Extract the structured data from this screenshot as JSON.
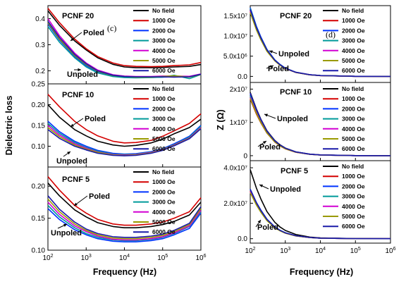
{
  "figure": {
    "left_ylabel": "Dielectric loss",
    "right_ylabel": "Z (Ω)",
    "left_xlabel": "Frequency (Hz)",
    "right_xlabel": "Frequency (Hz)"
  },
  "legend_entries": [
    {
      "label": "No field",
      "color": "#000000"
    },
    {
      "label": "1000 Oe",
      "color": "#d40000"
    },
    {
      "label": "2000 Oe",
      "color": "#0033ff"
    },
    {
      "label": "3000 Oe",
      "color": "#009a9a"
    },
    {
      "label": "4000 Oe",
      "color": "#d200d2"
    },
    {
      "label": "5000 Oe",
      "color": "#9a9a00"
    },
    {
      "label": "6000 Oe",
      "color": "#1a1aa8"
    }
  ],
  "chart_data": [
    {
      "id": "loss-pcnf20",
      "type": "line",
      "title": "PCNF 20",
      "letter": "(c)",
      "x_scale": "log",
      "xlim": [
        100,
        1000000
      ],
      "ylim": [
        0.15,
        0.45
      ],
      "yticks": [
        0.2,
        0.3,
        0.4
      ],
      "ytick_labels": [
        "0.2",
        "0.3",
        "0.4"
      ],
      "annotations": [
        "Poled",
        "Unpoled"
      ],
      "x": [
        100,
        200,
        500,
        1000,
        2000,
        5000,
        10000,
        20000,
        50000,
        100000,
        200000,
        500000,
        1000000
      ],
      "series": [
        {
          "name": "No field",
          "values": [
            0.43,
            0.375,
            0.315,
            0.28,
            0.25,
            0.225,
            0.215,
            0.212,
            0.212,
            0.213,
            0.215,
            0.217,
            0.224
          ]
        },
        {
          "name": "1000 Oe",
          "values": [
            0.44,
            0.385,
            0.322,
            0.285,
            0.255,
            0.23,
            0.22,
            0.217,
            0.216,
            0.217,
            0.22,
            0.223,
            0.232
          ]
        },
        {
          "name": "2000 Oe",
          "values": [
            0.38,
            0.318,
            0.255,
            0.22,
            0.195,
            0.18,
            0.176,
            0.175,
            0.175,
            0.176,
            0.177,
            0.177,
            0.185
          ]
        },
        {
          "name": "3000 Oe",
          "values": [
            0.37,
            0.31,
            0.25,
            0.215,
            0.192,
            0.178,
            0.174,
            0.173,
            0.174,
            0.176,
            0.183,
            0.17,
            0.186
          ]
        },
        {
          "name": "4000 Oe",
          "values": [
            0.4,
            0.335,
            0.268,
            0.23,
            0.203,
            0.185,
            0.18,
            0.178,
            0.178,
            0.18,
            0.18,
            0.179,
            0.188
          ]
        },
        {
          "name": "5000 Oe",
          "values": [
            0.385,
            0.322,
            0.259,
            0.224,
            0.198,
            0.182,
            0.178,
            0.176,
            0.176,
            0.178,
            0.181,
            0.176,
            0.186
          ]
        },
        {
          "name": "6000 Oe",
          "values": [
            0.39,
            0.328,
            0.263,
            0.227,
            0.2,
            0.183,
            0.178,
            0.177,
            0.177,
            0.177,
            0.176,
            0.177,
            0.187
          ]
        }
      ]
    },
    {
      "id": "loss-pcnf10",
      "type": "line",
      "title": "PCNF 10",
      "x_scale": "log",
      "xlim": [
        100,
        1000000
      ],
      "ylim": [
        0.05,
        0.25
      ],
      "yticks": [
        0.1,
        0.15,
        0.2,
        0.25
      ],
      "ytick_labels": [
        "0.10",
        "0.15",
        "0.20",
        "0.25"
      ],
      "annotations": [
        "Poled",
        "Unpoled"
      ],
      "x": [
        100,
        200,
        500,
        1000,
        2000,
        5000,
        10000,
        20000,
        50000,
        100000,
        200000,
        500000,
        1000000
      ],
      "series": [
        {
          "name": "No field",
          "values": [
            0.2,
            0.17,
            0.14,
            0.125,
            0.112,
            0.103,
            0.1,
            0.102,
            0.108,
            0.117,
            0.13,
            0.145,
            0.165
          ]
        },
        {
          "name": "1000 Oe",
          "values": [
            0.225,
            0.195,
            0.16,
            0.14,
            0.125,
            0.112,
            0.108,
            0.109,
            0.114,
            0.124,
            0.137,
            0.155,
            0.178
          ]
        },
        {
          "name": "2000 Oe",
          "values": [
            0.16,
            0.135,
            0.112,
            0.1,
            0.09,
            0.083,
            0.081,
            0.082,
            0.087,
            0.094,
            0.106,
            0.124,
            0.15
          ]
        },
        {
          "name": "3000 Oe",
          "values": [
            0.155,
            0.131,
            0.109,
            0.097,
            0.088,
            0.081,
            0.08,
            0.081,
            0.086,
            0.093,
            0.104,
            0.122,
            0.148
          ]
        },
        {
          "name": "4000 Oe",
          "values": [
            0.15,
            0.127,
            0.106,
            0.095,
            0.086,
            0.08,
            0.079,
            0.08,
            0.085,
            0.092,
            0.103,
            0.12,
            0.145
          ]
        },
        {
          "name": "5000 Oe",
          "values": [
            0.145,
            0.123,
            0.103,
            0.093,
            0.085,
            0.079,
            0.078,
            0.079,
            0.084,
            0.091,
            0.102,
            0.119,
            0.143
          ]
        },
        {
          "name": "6000 Oe",
          "values": [
            0.14,
            0.119,
            0.1,
            0.091,
            0.083,
            0.078,
            0.077,
            0.078,
            0.083,
            0.09,
            0.101,
            0.118,
            0.142
          ]
        }
      ]
    },
    {
      "id": "loss-pcnf5",
      "type": "line",
      "title": "PCNF 5",
      "x_scale": "log",
      "xlim": [
        100,
        1000000
      ],
      "ylim": [
        0.1,
        0.23
      ],
      "yticks": [
        0.1,
        0.15,
        0.2
      ],
      "ytick_labels": [
        "0.10",
        "0.15",
        "0.20"
      ],
      "xticks": [
        100,
        1000,
        10000,
        100000,
        1000000
      ],
      "annotations": [
        "Poled",
        "Unpoled"
      ],
      "x": [
        100,
        200,
        500,
        1000,
        2000,
        5000,
        10000,
        20000,
        50000,
        100000,
        200000,
        500000,
        1000000
      ],
      "series": [
        {
          "name": "No field",
          "values": [
            0.205,
            0.185,
            0.163,
            0.152,
            0.143,
            0.137,
            0.135,
            0.135,
            0.137,
            0.14,
            0.145,
            0.155,
            0.175
          ]
        },
        {
          "name": "1000 Oe",
          "values": [
            0.215,
            0.194,
            0.17,
            0.158,
            0.148,
            0.141,
            0.139,
            0.139,
            0.141,
            0.144,
            0.15,
            0.16,
            0.182
          ]
        },
        {
          "name": "2000 Oe",
          "values": [
            0.165,
            0.148,
            0.132,
            0.124,
            0.118,
            0.114,
            0.113,
            0.113,
            0.115,
            0.118,
            0.124,
            0.134,
            0.158
          ]
        },
        {
          "name": "3000 Oe",
          "values": [
            0.17,
            0.152,
            0.135,
            0.126,
            0.12,
            0.116,
            0.115,
            0.115,
            0.117,
            0.12,
            0.126,
            0.137,
            0.16
          ]
        },
        {
          "name": "4000 Oe",
          "values": [
            0.175,
            0.156,
            0.138,
            0.129,
            0.122,
            0.117,
            0.116,
            0.116,
            0.118,
            0.121,
            0.127,
            0.138,
            0.162
          ]
        },
        {
          "name": "5000 Oe",
          "values": [
            0.18,
            0.16,
            0.141,
            0.131,
            0.124,
            0.119,
            0.118,
            0.118,
            0.12,
            0.123,
            0.129,
            0.14,
            0.165
          ]
        },
        {
          "name": "6000 Oe",
          "values": [
            0.185,
            0.164,
            0.144,
            0.133,
            0.126,
            0.121,
            0.12,
            0.12,
            0.122,
            0.125,
            0.131,
            0.142,
            0.168
          ]
        }
      ]
    },
    {
      "id": "z-pcnf20",
      "type": "line",
      "title": "PCNF 20",
      "letter": "(d)",
      "x_scale": "log",
      "xlim": [
        100,
        1000000
      ],
      "ylim": [
        -1500000,
        17500000
      ],
      "yticks": [
        0,
        5000000,
        10000000,
        15000000
      ],
      "ytick_labels": [
        "0.0",
        "5.0x10⁶",
        "1.0x10⁷",
        "1.5x10⁷"
      ],
      "annotations": [
        "Unpoled",
        "Poled"
      ],
      "x": [
        100,
        150,
        200,
        300,
        500,
        700,
        1000,
        2000,
        5000,
        10000,
        100000,
        1000000
      ],
      "series": [
        {
          "name": "No field",
          "values": [
            16500000,
            12000000,
            9500000,
            6500000,
            4000000,
            2900000,
            2000000,
            1000000,
            400000,
            200000,
            20000,
            2000
          ]
        },
        {
          "name": "1000 Oe",
          "values": [
            16000000,
            11700000,
            9200000,
            6300000,
            3900000,
            2800000,
            1950000,
            980000,
            390000,
            195000,
            20000,
            2000
          ]
        },
        {
          "name": "2000 Oe",
          "values": [
            17000000,
            12400000,
            9800000,
            6700000,
            4100000,
            3000000,
            2050000,
            1030000,
            410000,
            205000,
            21000,
            2000
          ]
        },
        {
          "name": "3000 Oe",
          "values": [
            16800000,
            12200000,
            9600000,
            6600000,
            4050000,
            2950000,
            2020000,
            1010000,
            405000,
            202000,
            20000,
            2000
          ]
        },
        {
          "name": "4000 Oe",
          "values": [
            16200000,
            11800000,
            9300000,
            6400000,
            3950000,
            2850000,
            1980000,
            990000,
            395000,
            198000,
            20000,
            2000
          ]
        },
        {
          "name": "5000 Oe",
          "values": [
            15800000,
            11500000,
            9100000,
            6200000,
            3850000,
            2780000,
            1930000,
            970000,
            385000,
            193000,
            19000,
            2000
          ]
        },
        {
          "name": "6000 Oe",
          "values": [
            16600000,
            12100000,
            9550000,
            6550000,
            4020000,
            2920000,
            2010000,
            1005000,
            402000,
            201000,
            20000,
            2000
          ]
        }
      ]
    },
    {
      "id": "z-pcnf10",
      "type": "line",
      "title": "PCNF 10",
      "x_scale": "log",
      "xlim": [
        100,
        1000000
      ],
      "ylim": [
        -1500000,
        22000000
      ],
      "yticks": [
        0,
        10000000,
        20000000
      ],
      "ytick_labels": [
        "0",
        "1x10⁷",
        "2x10⁷"
      ],
      "annotations": [
        "Unpoled",
        "Poled"
      ],
      "x": [
        100,
        150,
        200,
        300,
        500,
        700,
        1000,
        2000,
        5000,
        10000,
        100000,
        1000000
      ],
      "series": [
        {
          "name": "No field",
          "values": [
            19000000,
            14000000,
            11000000,
            7500000,
            4600000,
            3300000,
            2300000,
            1150000,
            460000,
            230000,
            23000,
            2000
          ]
        },
        {
          "name": "1000 Oe",
          "values": [
            17000000,
            12500000,
            9900000,
            6800000,
            4100000,
            2950000,
            2050000,
            1020000,
            410000,
            205000,
            20000,
            2000
          ]
        },
        {
          "name": "2000 Oe",
          "values": [
            18500000,
            13600000,
            10700000,
            7300000,
            4450000,
            3200000,
            2230000,
            1110000,
            445000,
            223000,
            22000,
            2000
          ]
        },
        {
          "name": "3000 Oe",
          "values": [
            18000000,
            13300000,
            10400000,
            7100000,
            4350000,
            3120000,
            2170000,
            1090000,
            435000,
            217000,
            22000,
            2000
          ]
        },
        {
          "name": "4000 Oe",
          "values": [
            17500000,
            12900000,
            10100000,
            6900000,
            4200000,
            3030000,
            2110000,
            1050000,
            420000,
            211000,
            21000,
            2000
          ]
        },
        {
          "name": "5000 Oe",
          "values": [
            17200000,
            12700000,
            10000000,
            6850000,
            4150000,
            2990000,
            2080000,
            1040000,
            415000,
            208000,
            21000,
            2000
          ]
        },
        {
          "name": "6000 Oe",
          "values": [
            18800000,
            13800000,
            10900000,
            7400000,
            4500000,
            3250000,
            2260000,
            1130000,
            452000,
            226000,
            22000,
            2000
          ]
        }
      ]
    },
    {
      "id": "z-pcnf5",
      "type": "line",
      "title": "PCNF 5",
      "x_scale": "log",
      "xlim": [
        100,
        1000000
      ],
      "ylim": [
        -2500000,
        44000000
      ],
      "yticks": [
        0,
        20000000,
        40000000
      ],
      "ytick_labels": [
        "0.0",
        "2.0x10⁷",
        "4.0x10⁷"
      ],
      "xticks": [
        100,
        1000,
        10000,
        100000,
        1000000
      ],
      "annotations": [
        "Unpoled",
        "Poled"
      ],
      "x": [
        100,
        150,
        200,
        300,
        500,
        700,
        1000,
        2000,
        5000,
        10000,
        100000,
        1000000
      ],
      "series": [
        {
          "name": "No field",
          "values": [
            39000000,
            28500000,
            22500000,
            15300000,
            9300000,
            6700000,
            4650000,
            2330000,
            930000,
            465000,
            47000,
            5000
          ]
        },
        {
          "name": "1000 Oe",
          "values": [
            27000000,
            19700000,
            15600000,
            10600000,
            6450000,
            4650000,
            3220000,
            1610000,
            645000,
            322000,
            32000,
            3000
          ]
        },
        {
          "name": "2000 Oe",
          "values": [
            28000000,
            20400000,
            16200000,
            11000000,
            6700000,
            4830000,
            3350000,
            1670000,
            670000,
            335000,
            34000,
            3000
          ]
        },
        {
          "name": "3000 Oe",
          "values": [
            27500000,
            20100000,
            15900000,
            10800000,
            6580000,
            4740000,
            3290000,
            1640000,
            658000,
            329000,
            33000,
            3000
          ]
        },
        {
          "name": "4000 Oe",
          "values": [
            26500000,
            19300000,
            15300000,
            10400000,
            6330000,
            4560000,
            3160000,
            1580000,
            633000,
            316000,
            32000,
            3000
          ]
        },
        {
          "name": "5000 Oe",
          "values": [
            26000000,
            19000000,
            15000000,
            10200000,
            6210000,
            4480000,
            3100000,
            1550000,
            621000,
            310000,
            31000,
            3000
          ]
        },
        {
          "name": "6000 Oe",
          "values": [
            27800000,
            20300000,
            16000000,
            10900000,
            6650000,
            4790000,
            3320000,
            1660000,
            665000,
            332000,
            33000,
            3000
          ]
        }
      ]
    }
  ]
}
